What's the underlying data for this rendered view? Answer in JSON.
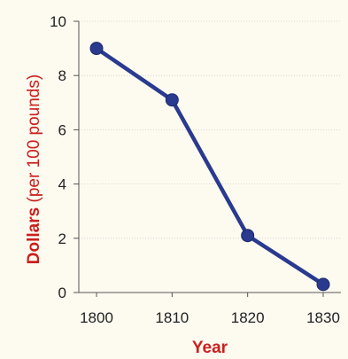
{
  "chart_data": {
    "type": "line",
    "title": "",
    "x": [
      1800,
      1810,
      1820,
      1830
    ],
    "x_tick_labels": [
      "1800",
      "1810",
      "1820",
      "1830"
    ],
    "y_ticks": [
      0,
      2,
      4,
      6,
      8,
      10
    ],
    "y_tick_labels": [
      "0",
      "2",
      "4",
      "6",
      "8",
      "10"
    ],
    "series": [
      {
        "values": [
          9.0,
          7.1,
          2.1,
          0.3
        ]
      }
    ],
    "xlabel": "Year",
    "ylabel_bold": "Dollars",
    "ylabel_rest": " (per 100 pounds)",
    "xlim": [
      1800,
      1830
    ],
    "ylim": [
      0,
      10
    ],
    "grid": true,
    "colors": {
      "background": "#fdfaf0",
      "line": "#2a3a8f",
      "marker": "#2a3a8f",
      "axis_title": "#c8201e",
      "grid": "#c9c9c9",
      "axis": "#555555"
    }
  }
}
